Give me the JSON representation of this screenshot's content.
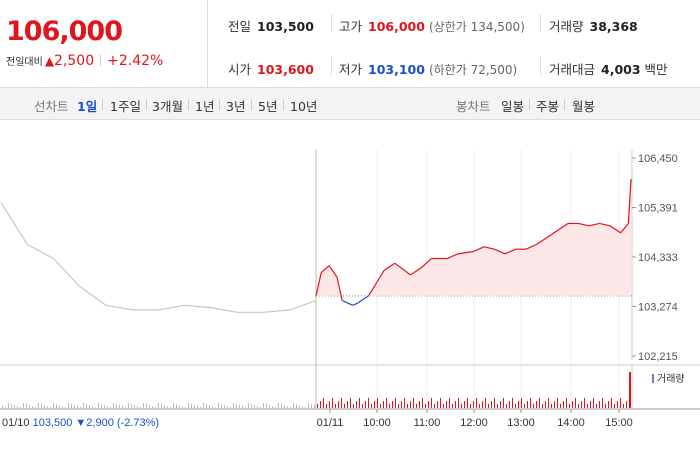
{
  "quote": {
    "current_price": "106,000",
    "change_label": "전일대비",
    "change_arrow": "▲",
    "change_amount": "2,500",
    "change_pct": "+2.42%"
  },
  "stats": {
    "prev_close": {
      "label": "전일",
      "value": "103,500"
    },
    "high": {
      "label": "고가",
      "value": "106,000",
      "note": "(상한가 134,500)"
    },
    "volume": {
      "label": "거래량",
      "value": "38,368"
    },
    "open": {
      "label": "시가",
      "value": "103,600"
    },
    "low": {
      "label": "저가",
      "value": "103,100",
      "note": "(하한가 72,500)"
    },
    "turnover": {
      "label": "거래대금",
      "value": "4,003",
      "unit": "백만"
    }
  },
  "tabs": {
    "line_label": "선차트",
    "line_periods": [
      "1일",
      "1주일",
      "3개월",
      "1년",
      "3년",
      "5년",
      "10년"
    ],
    "active_period": "1일",
    "candle_label": "봉차트",
    "candle_periods": [
      "일봉",
      "주봉",
      "월봉"
    ]
  },
  "colors": {
    "up": "#e0161e",
    "down": "#1a4fd0",
    "prev_day": "#c6c6c6",
    "fill_up": "#fde3e5"
  },
  "chart_data": {
    "type": "line",
    "y_ticks": [
      "106,450",
      "105,391",
      "104,333",
      "103,274",
      "102,215"
    ],
    "ylim": [
      102215,
      106450
    ],
    "reference_price": 103500,
    "x_labels": [
      "01/11",
      "10:00",
      "11:00",
      "12:00",
      "13:00",
      "14:00",
      "15:00"
    ],
    "volume_label": "거래량",
    "prev_day_footer": {
      "date": "01/10",
      "close": "103,500",
      "change": "▼2,900",
      "change_pct": "(-2.73%)"
    },
    "series": [
      {
        "name": "01/10",
        "x": [
          0,
          0.5,
          1,
          1.5,
          2,
          2.5,
          3,
          3.5,
          4,
          4.5,
          5,
          5.5,
          6
        ],
        "values": [
          105500,
          104600,
          104300,
          103700,
          103300,
          103200,
          103200,
          103300,
          103250,
          103150,
          103150,
          103200,
          103400
        ]
      },
      {
        "name": "01/11",
        "x": [
          0,
          0.1,
          0.25,
          0.4,
          0.5,
          0.7,
          0.8,
          1.0,
          1.3,
          1.5,
          1.8,
          2.0,
          2.2,
          2.5,
          2.7,
          3.0,
          3.2,
          3.4,
          3.6,
          3.8,
          4.0,
          4.2,
          4.4,
          4.6,
          4.8,
          5.0,
          5.2,
          5.4,
          5.6,
          5.8,
          5.95,
          6.0
        ],
        "values": [
          103500,
          104000,
          104150,
          103900,
          103400,
          103300,
          103350,
          103500,
          104050,
          104200,
          103950,
          104100,
          104300,
          104300,
          104400,
          104450,
          104550,
          104500,
          104400,
          104500,
          104500,
          104600,
          104750,
          104900,
          105050,
          105050,
          105000,
          105050,
          105000,
          104850,
          105050,
          106000
        ]
      }
    ]
  }
}
